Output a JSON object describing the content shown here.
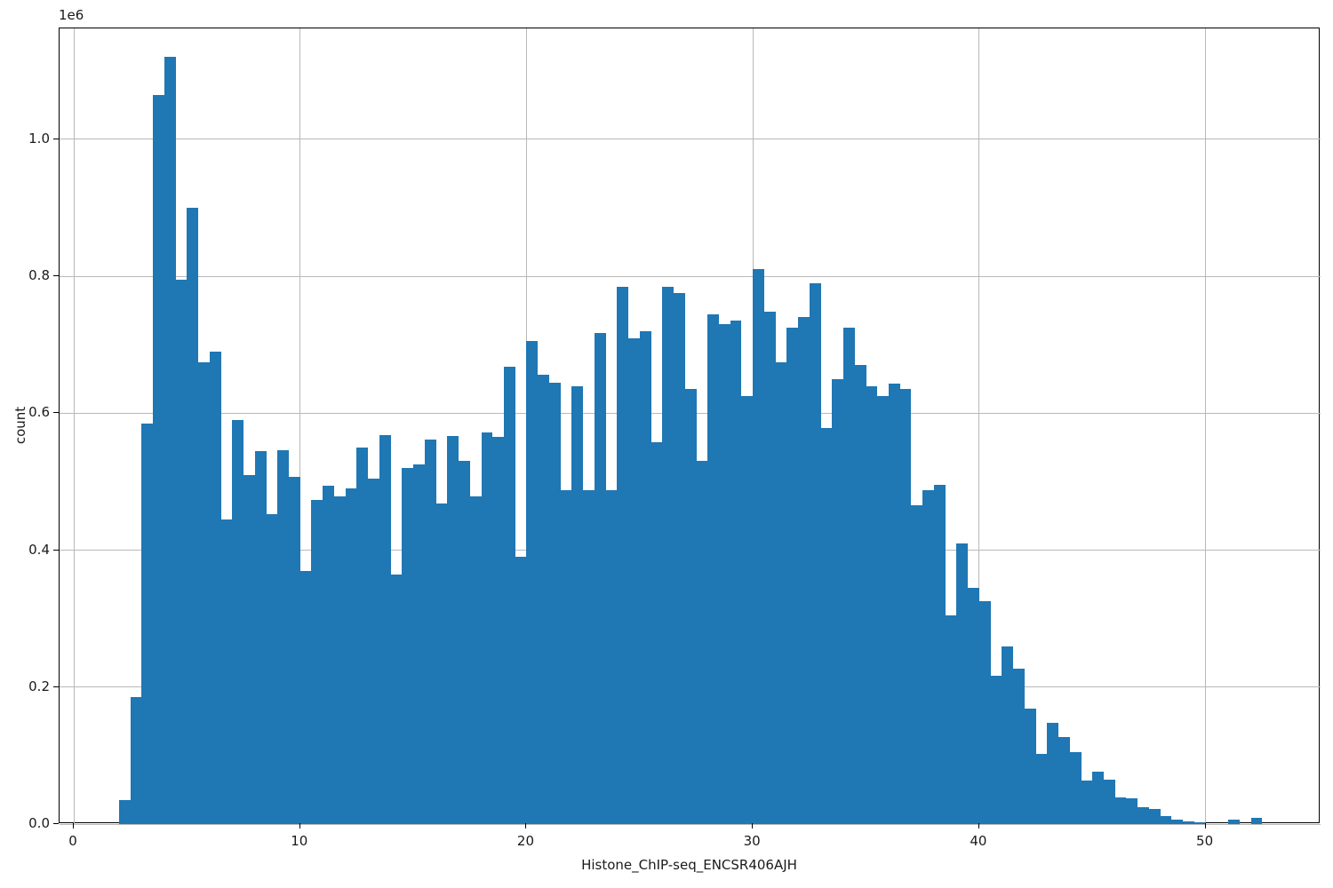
{
  "figure": {
    "kind": "matplotlib-histogram",
    "background_color": "#ffffff",
    "bar_color": "#1f77b4",
    "grid_color": "#b8b8b8",
    "spine_color": "#000000",
    "text_color": "#1a1a1a"
  },
  "chart_data": {
    "type": "bar",
    "subtype": "histogram",
    "title": "",
    "xlabel": "Histone_ChIP-seq_ENCSR406AJH",
    "ylabel": "count",
    "y_offset_text": "1e6",
    "x_tick_labels": [
      "0",
      "10",
      "20",
      "30",
      "40",
      "50"
    ],
    "x_tick_values": [
      0,
      10,
      20,
      30,
      40,
      50
    ],
    "y_tick_labels": [
      "0.0",
      "0.2",
      "0.4",
      "0.6",
      "0.8",
      "1.0"
    ],
    "y_tick_values": [
      0,
      200000,
      400000,
      600000,
      800000,
      1000000
    ],
    "xlim": [
      -0.63,
      55.08
    ],
    "ylim": [
      0,
      1162000
    ],
    "grid": true,
    "legend": null,
    "bin_start": 2.0,
    "bin_width": 0.5,
    "bin_x_left_edges": [
      2.0,
      2.5,
      3.0,
      3.5,
      4.0,
      4.5,
      5.0,
      5.5,
      6.0,
      6.5,
      7.0,
      7.5,
      8.0,
      8.5,
      9.0,
      9.5,
      10.0,
      10.5,
      11.0,
      11.5,
      12.0,
      12.5,
      13.0,
      13.5,
      14.0,
      14.5,
      15.0,
      15.5,
      16.0,
      16.5,
      17.0,
      17.5,
      18.0,
      18.5,
      19.0,
      19.5,
      20.0,
      20.5,
      21.0,
      21.5,
      22.0,
      22.5,
      23.0,
      23.5,
      24.0,
      24.5,
      25.0,
      25.5,
      26.0,
      26.5,
      27.0,
      27.5,
      28.0,
      28.5,
      29.0,
      29.5,
      30.0,
      30.5,
      31.0,
      31.5,
      32.0,
      32.5,
      33.0,
      33.5,
      34.0,
      34.5,
      35.0,
      35.5,
      36.0,
      36.5,
      37.0,
      37.5,
      38.0,
      38.5,
      39.0,
      39.5,
      40.0,
      40.5,
      41.0,
      41.5,
      42.0,
      42.5,
      43.0,
      43.5,
      44.0,
      44.5,
      45.0,
      45.5,
      46.0,
      46.5,
      47.0,
      47.5,
      48.0,
      48.5,
      49.0,
      49.5,
      50.0,
      50.5,
      51.0,
      51.5,
      52.0
    ],
    "counts": [
      35000,
      185000,
      585000,
      1065000,
      1120000,
      795000,
      900000,
      675000,
      690000,
      445000,
      590000,
      510000,
      545000,
      452000,
      546000,
      507000,
      369000,
      474000,
      494000,
      478000,
      490000,
      550000,
      505000,
      568000,
      365000,
      520000,
      525000,
      562000,
      468000,
      567000,
      530000,
      478000,
      572000,
      566000,
      668000,
      390000,
      705000,
      656000,
      645000,
      487000,
      640000,
      487000,
      717000,
      487000,
      785000,
      710000,
      720000,
      558000,
      785000,
      775000,
      635000,
      530000,
      745000,
      730000,
      735000,
      625000,
      810000,
      748000,
      675000,
      725000,
      740000,
      790000,
      578000,
      650000,
      725000,
      670000,
      640000,
      625000,
      643000,
      635000,
      465000,
      488000,
      495000,
      305000,
      410000,
      345000,
      326000,
      217000,
      260000,
      227000,
      168000,
      103000,
      148000,
      127000,
      105000,
      63000,
      76000,
      65000,
      39000,
      37000,
      25000,
      22000,
      12000,
      7000,
      4000,
      2000,
      0,
      0,
      7000,
      0,
      9000
    ]
  },
  "layout_note": "y axis displayed in units of 1e6"
}
